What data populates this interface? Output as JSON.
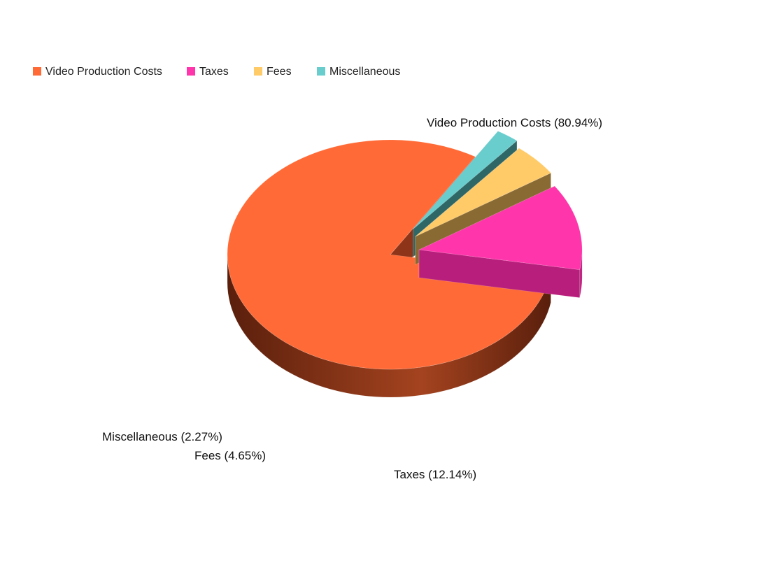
{
  "chart_data": {
    "type": "pie",
    "style": "3d-exploded",
    "legend_position": "top-left",
    "series": [
      {
        "name": "Video Production Costs",
        "value": 80.94,
        "label": "Video Production Costs (80.94%)",
        "color": "#ff6a36",
        "side_color": "#8e3418"
      },
      {
        "name": "Taxes",
        "value": 12.14,
        "label": "Taxes (12.14%)",
        "color": "#ff36ab",
        "side_color": "#b81f7c"
      },
      {
        "name": "Fees",
        "value": 4.65,
        "label": "Fees (4.65%)",
        "color": "#ffcb69",
        "side_color": "#8a6a33"
      },
      {
        "name": "Miscellaneous",
        "value": 2.27,
        "label": "Miscellaneous (2.27%)",
        "color": "#69cdcd",
        "side_color": "#2f6666"
      }
    ]
  }
}
